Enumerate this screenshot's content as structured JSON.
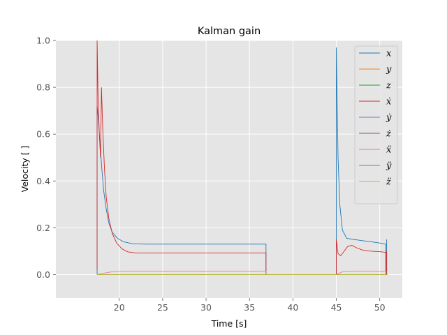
{
  "chart_data": {
    "type": "line",
    "title": "Kalman gain",
    "xlabel": "Time [s]",
    "ylabel": "Velocity [ ]",
    "xlim": [
      12.7,
      52.6
    ],
    "ylim": [
      -0.1,
      1.0
    ],
    "xticks": [
      20,
      25,
      30,
      35,
      40,
      45,
      50
    ],
    "yticks": [
      0.0,
      0.2,
      0.4,
      0.6,
      0.8,
      1.0
    ],
    "ytick_labels": [
      "0.0",
      "0.2",
      "0.4",
      "0.6",
      "0.8",
      "1.0"
    ],
    "grid": true,
    "legend_position": "top-right",
    "series": [
      {
        "name": "x",
        "color": "#1f77b4",
        "values": [
          [
            17.45,
            0.0
          ],
          [
            17.45,
            0.72
          ],
          [
            17.6,
            0.66
          ],
          [
            17.8,
            0.55
          ],
          [
            18.0,
            0.45
          ],
          [
            18.2,
            0.36
          ],
          [
            18.5,
            0.28
          ],
          [
            18.8,
            0.22
          ],
          [
            19.2,
            0.18
          ],
          [
            19.8,
            0.155
          ],
          [
            20.5,
            0.14
          ],
          [
            21.5,
            0.132
          ],
          [
            23.0,
            0.13
          ],
          [
            30.0,
            0.13
          ],
          [
            36.9,
            0.13
          ],
          [
            36.9,
            0.0
          ],
          [
            45.0,
            0.0
          ],
          [
            45.0,
            0.97
          ],
          [
            45.2,
            0.5
          ],
          [
            45.4,
            0.3
          ],
          [
            45.7,
            0.19
          ],
          [
            46.2,
            0.155
          ],
          [
            47.0,
            0.15
          ],
          [
            48.0,
            0.145
          ],
          [
            49.0,
            0.14
          ],
          [
            50.0,
            0.135
          ],
          [
            50.7,
            0.13
          ],
          [
            50.7,
            0.0
          ],
          [
            50.8,
            0.0
          ],
          [
            50.8,
            0.15
          ]
        ]
      },
      {
        "name": "y",
        "color": "#ff7f0e",
        "values": [
          [
            17.45,
            0.0
          ],
          [
            50.9,
            0.0
          ]
        ]
      },
      {
        "name": "z",
        "color": "#2ca02c",
        "values": [
          [
            17.45,
            0.0
          ],
          [
            50.9,
            0.0
          ]
        ]
      },
      {
        "name": "ẋ",
        "color": "#d62728",
        "values": [
          [
            17.45,
            0.02
          ],
          [
            17.45,
            1.0
          ],
          [
            17.55,
            0.78
          ],
          [
            17.7,
            0.6
          ],
          [
            17.85,
            0.5
          ],
          [
            17.95,
            0.8
          ],
          [
            18.1,
            0.62
          ],
          [
            18.3,
            0.45
          ],
          [
            18.5,
            0.33
          ],
          [
            18.8,
            0.24
          ],
          [
            19.2,
            0.175
          ],
          [
            19.7,
            0.135
          ],
          [
            20.3,
            0.11
          ],
          [
            21.0,
            0.097
          ],
          [
            22.0,
            0.092
          ],
          [
            30.0,
            0.092
          ],
          [
            36.9,
            0.092
          ],
          [
            36.9,
            0.0
          ],
          [
            45.0,
            0.0
          ],
          [
            45.0,
            0.15
          ],
          [
            45.2,
            0.09
          ],
          [
            45.5,
            0.08
          ],
          [
            45.9,
            0.1
          ],
          [
            46.3,
            0.12
          ],
          [
            46.8,
            0.125
          ],
          [
            47.3,
            0.115
          ],
          [
            48.0,
            0.105
          ],
          [
            49.0,
            0.1
          ],
          [
            50.0,
            0.098
          ],
          [
            50.7,
            0.095
          ],
          [
            50.7,
            0.0
          ],
          [
            50.8,
            0.0
          ],
          [
            50.8,
            0.1
          ]
        ]
      },
      {
        "name": "ẏ",
        "color": "#9467bd",
        "values": [
          [
            17.45,
            0.0
          ],
          [
            50.9,
            0.0
          ]
        ]
      },
      {
        "name": "ż",
        "color": "#8c564b",
        "values": [
          [
            17.45,
            0.0
          ],
          [
            50.9,
            0.0
          ]
        ]
      },
      {
        "name": "ẍ",
        "color": "#e377c2",
        "values": [
          [
            17.45,
            0.0
          ],
          [
            18.0,
            0.004
          ],
          [
            18.5,
            0.008
          ],
          [
            19.0,
            0.011
          ],
          [
            19.6,
            0.013
          ],
          [
            20.3,
            0.015
          ],
          [
            21.5,
            0.015
          ],
          [
            30.0,
            0.015
          ],
          [
            36.9,
            0.015
          ],
          [
            36.9,
            0.0
          ],
          [
            45.0,
            0.0
          ],
          [
            45.3,
            0.005
          ],
          [
            45.7,
            0.012
          ],
          [
            46.3,
            0.015
          ],
          [
            48.0,
            0.015
          ],
          [
            50.7,
            0.015
          ],
          [
            50.7,
            0.0
          ],
          [
            50.9,
            0.0
          ]
        ]
      },
      {
        "name": "ÿ",
        "color": "#7f7f7f",
        "values": [
          [
            17.45,
            0.0
          ],
          [
            50.9,
            0.0
          ]
        ]
      },
      {
        "name": "z̈",
        "color": "#bcbd22",
        "values": [
          [
            17.45,
            0.0
          ],
          [
            50.9,
            0.0
          ]
        ]
      }
    ]
  }
}
